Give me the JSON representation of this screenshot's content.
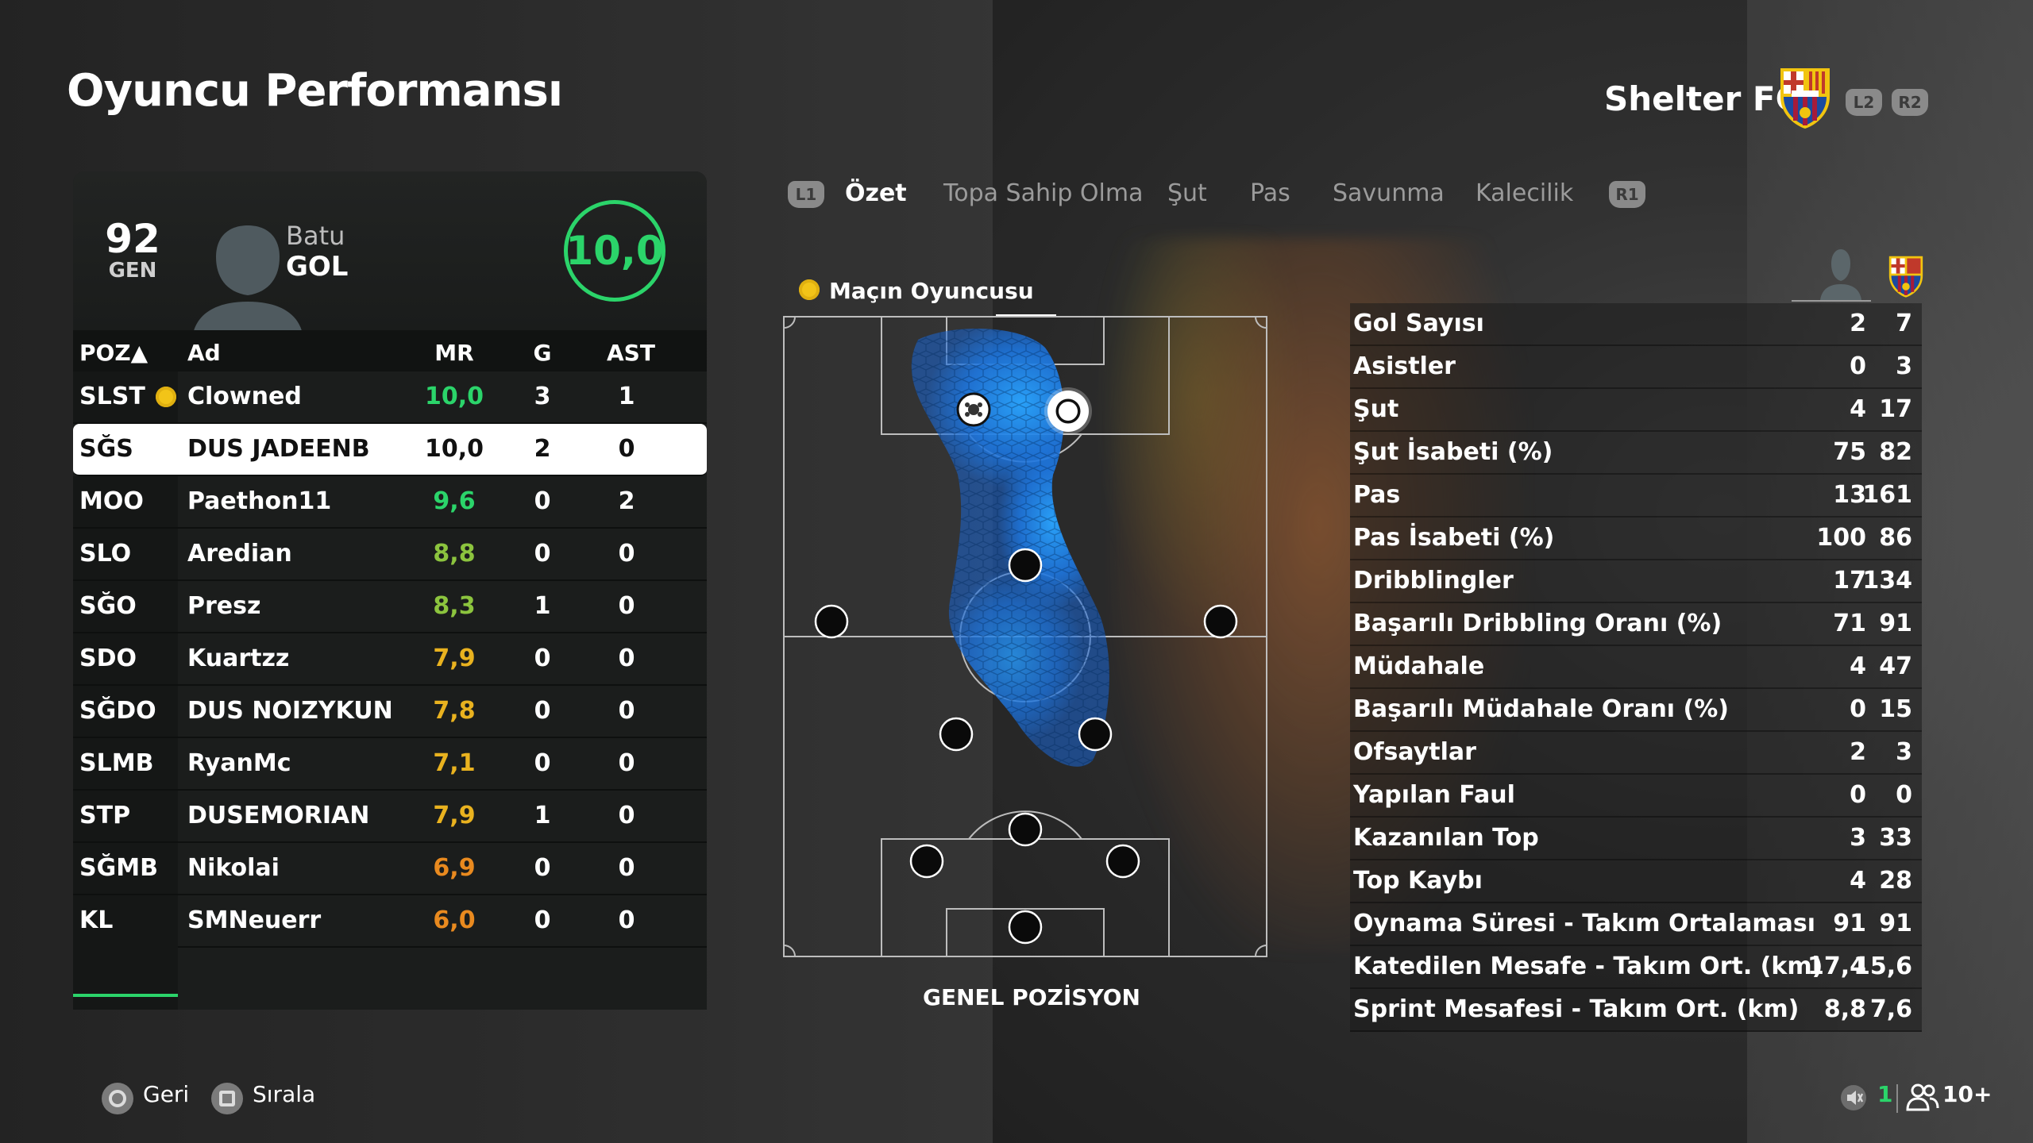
{
  "header": {
    "title": "Oyuncu Performansı",
    "team_name": "Shelter FC",
    "l2": "L2",
    "r2": "R2"
  },
  "player_card": {
    "overall": "92",
    "overall_label": "GEN",
    "name": "Batu",
    "position": "GOL",
    "rating": "10,0"
  },
  "table": {
    "headers": {
      "pos": "POZ▲",
      "name": "Ad",
      "rating": "MR",
      "goals": "G",
      "assists": "AST"
    },
    "rows": [
      {
        "pos": "SLST",
        "name": "Clowned",
        "rating": "10,0",
        "rating_color": "#2bd46a",
        "goals": "3",
        "assists": "1",
        "motm": true
      },
      {
        "pos": "SĞS",
        "name": "DUS JADEENB",
        "rating": "10,0",
        "rating_color": "#111111",
        "goals": "2",
        "assists": "0",
        "selected": true
      },
      {
        "pos": "MOO",
        "name": "Paethon11",
        "rating": "9,6",
        "rating_color": "#2bd46a",
        "goals": "0",
        "assists": "2"
      },
      {
        "pos": "SLO",
        "name": "Aredian",
        "rating": "8,8",
        "rating_color": "#8cc43e",
        "goals": "0",
        "assists": "0"
      },
      {
        "pos": "SĞO",
        "name": "Presz",
        "rating": "8,3",
        "rating_color": "#8cc43e",
        "goals": "1",
        "assists": "0"
      },
      {
        "pos": "SDO",
        "name": "Kuartzz",
        "rating": "7,9",
        "rating_color": "#e9b21f",
        "goals": "0",
        "assists": "0"
      },
      {
        "pos": "SĞDO",
        "name": "DUS NOIZYKUN",
        "rating": "7,8",
        "rating_color": "#e9b21f",
        "goals": "0",
        "assists": "0"
      },
      {
        "pos": "SLMB",
        "name": "RyanMc",
        "rating": "7,1",
        "rating_color": "#e9b21f",
        "goals": "0",
        "assists": "0"
      },
      {
        "pos": "STP",
        "name": "DUSEMORIAN",
        "rating": "7,9",
        "rating_color": "#e9b21f",
        "goals": "1",
        "assists": "0"
      },
      {
        "pos": "SĞMB",
        "name": "Nikolai",
        "rating": "6,9",
        "rating_color": "#e98a1f",
        "goals": "0",
        "assists": "0"
      },
      {
        "pos": "KL",
        "name": "SMNeuerr",
        "rating": "6,0",
        "rating_color": "#e98a1f",
        "goals": "0",
        "assists": "0"
      }
    ]
  },
  "tabs": {
    "l1": "L1",
    "r1": "R1",
    "items": [
      {
        "label": "Özet",
        "active": true
      },
      {
        "label": "Topa Sahip Olma"
      },
      {
        "label": "Şut"
      },
      {
        "label": "Pas"
      },
      {
        "label": "Savunma"
      },
      {
        "label": "Kalecilik"
      }
    ]
  },
  "pitch": {
    "motm_label": "Maçın Oyuncusu",
    "caption": "GENEL POZİSYON"
  },
  "stats": [
    {
      "label": "Gol Sayısı",
      "player": "2",
      "team": "7"
    },
    {
      "label": "Asistler",
      "player": "0",
      "team": "3"
    },
    {
      "label": "Şut",
      "player": "4",
      "team": "17"
    },
    {
      "label": "Şut İsabeti (%)",
      "player": "75",
      "team": "82"
    },
    {
      "label": "Pas",
      "player": "13",
      "team": "161"
    },
    {
      "label": "Pas İsabeti (%)",
      "player": "100",
      "team": "86"
    },
    {
      "label": "Dribblingler",
      "player": "17",
      "team": "134"
    },
    {
      "label": "Başarılı Dribbling Oranı (%)",
      "player": "71",
      "team": "91"
    },
    {
      "label": "Müdahale",
      "player": "4",
      "team": "47"
    },
    {
      "label": "Başarılı Müdahale Oranı (%)",
      "player": "0",
      "team": "15"
    },
    {
      "label": "Ofsaytlar",
      "player": "2",
      "team": "3"
    },
    {
      "label": "Yapılan Faul",
      "player": "0",
      "team": "0"
    },
    {
      "label": "Kazanılan Top",
      "player": "3",
      "team": "33"
    },
    {
      "label": "Top Kaybı",
      "player": "4",
      "team": "28"
    },
    {
      "label": "Oynama Süresi - Takım Ortalaması",
      "player": "91",
      "team": "91"
    },
    {
      "label": "Katedilen Mesafe - Takım Ort. (km)",
      "player": "17,4",
      "team": "15,6"
    },
    {
      "label": "Sprint Mesafesi - Takım Ort. (km)",
      "player": "8,8",
      "team": "7,6"
    }
  ],
  "footer": {
    "back_label": "Geri",
    "sort_label": "Sırala",
    "players_count": "1",
    "party_size": "10+"
  },
  "colors": {
    "accent_green": "#2bd46a",
    "heatmap_blue": "#1e90ff",
    "motm_gold": "#f2c418"
  }
}
